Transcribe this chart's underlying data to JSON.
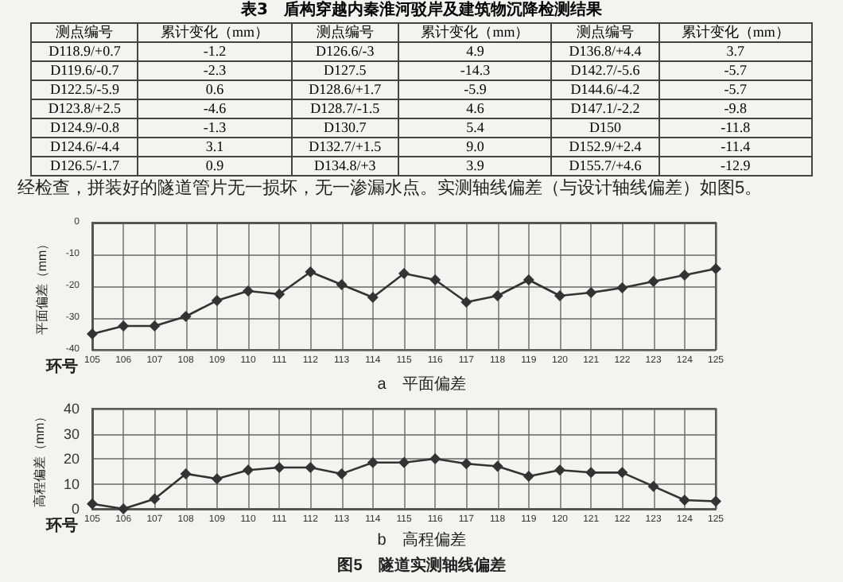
{
  "chart_data": [
    {
      "type": "other",
      "title": "表3　盾构穿越内秦淮河驳岸及建筑物沉降检测结果",
      "annotations": [
        "测点编号",
        "累计变化（mm）",
        "测点编号",
        "累计变化（mm）",
        "测点编号",
        "累计变化（mm）",
        "D118.9/+0.7",
        "-1.2",
        "D126.6/-3",
        "4.9",
        "D136.8/+4.4",
        "3.7",
        "D119.6/-0.7",
        "-2.3",
        "D127.5",
        "-14.3",
        "D142.7/-5.6",
        "-5.7",
        "D122.5/-5.9",
        "0.6",
        "D128.6/+1.7",
        "-5.9",
        "D144.6/-4.2",
        "-5.7",
        "D123.8/+2.5",
        "-4.6",
        "D128.7/-1.5",
        "4.6",
        "D147.1/-2.2",
        "-9.8",
        "D124.9/-0.8",
        "-1.3",
        "D130.7",
        "5.4",
        "D150",
        "-11.8",
        "D124.6/-4.4",
        "3.1",
        "D132.7/+1.5",
        "9.0",
        "D152.9/+2.4",
        "-11.4",
        "D126.5/-1.7",
        "0.9",
        "D134.8/+3",
        "3.9",
        "D155.7/+4.6",
        "-12.9"
      ]
    },
    {
      "type": "line",
      "title": "a　平面偏差",
      "xlabel": "环号",
      "ylabel": "平面偏差（mm）",
      "annotations": [
        "经检查，拼装好的隧道管片无一损坏，无一渗漏水点。实测轴线偏差（与设计轴线偏差）如图5。"
      ],
      "categories": [
        "105",
        "106",
        "107",
        "108",
        "109",
        "110",
        "111",
        "112",
        "113",
        "114",
        "115",
        "116",
        "117",
        "118",
        "119",
        "120",
        "121",
        "122",
        "123",
        "124",
        "125"
      ],
      "values": [
        -35,
        -32.5,
        -32.5,
        -29.5,
        -24.5,
        -21.5,
        -22.5,
        -15.5,
        -19.5,
        -23.5,
        -16,
        -18,
        -25,
        -23,
        -18,
        -23,
        -22,
        -20.5,
        -18.5,
        -16.5,
        -14.5
      ],
      "color": "#333333",
      "ylim": [
        -40,
        0
      ],
      "yticks": [
        -40,
        -30,
        -20,
        -10,
        0
      ],
      "grid": true,
      "marker": "diamond",
      "line_style": "solid"
    },
    {
      "type": "line",
      "title": "b　高程偏差",
      "xlabel": "环号",
      "ylabel": "高程偏差（mm）",
      "annotations": [
        "图5　隧道实测轴线偏差"
      ],
      "categories": [
        "105",
        "106",
        "107",
        "108",
        "109",
        "110",
        "111",
        "112",
        "113",
        "114",
        "115",
        "116",
        "117",
        "118",
        "119",
        "120",
        "121",
        "122",
        "123",
        "124",
        "125"
      ],
      "values": [
        2,
        0,
        4,
        14,
        12,
        15.5,
        16.5,
        16.5,
        14,
        18.5,
        18.5,
        20,
        18,
        17,
        13,
        15.5,
        14.5,
        14.5,
        9,
        3.5,
        3
      ],
      "color": "#333333",
      "ylim": [
        0,
        40
      ],
      "yticks": [
        0,
        10,
        20,
        30,
        40
      ],
      "grid": true,
      "marker": "diamond",
      "line_style": "solid"
    }
  ]
}
